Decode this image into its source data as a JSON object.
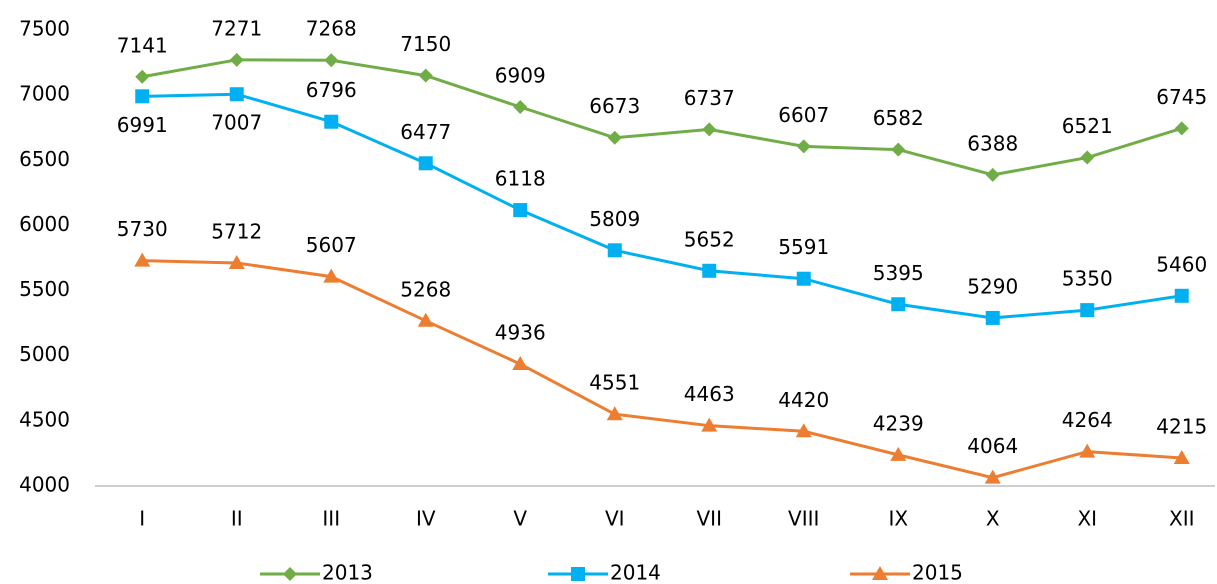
{
  "chart_data": {
    "type": "line",
    "categories": [
      "I",
      "II",
      "III",
      "IV",
      "V",
      "VI",
      "VII",
      "VIII",
      "IX",
      "X",
      "XI",
      "XII"
    ],
    "series": [
      {
        "name": "2013",
        "color": "#70ad47",
        "marker": "diamond",
        "values": [
          7141,
          7271,
          7268,
          7150,
          6909,
          6673,
          6737,
          6607,
          6582,
          6388,
          6521,
          6745
        ]
      },
      {
        "name": "2014",
        "color": "#00b0f0",
        "marker": "square",
        "values": [
          6991,
          7007,
          6796,
          6477,
          6118,
          5809,
          5652,
          5591,
          5395,
          5290,
          5350,
          5460
        ]
      },
      {
        "name": "2015",
        "color": "#ed7d31",
        "marker": "triangle",
        "values": [
          5730,
          5712,
          5607,
          5268,
          4936,
          4551,
          4463,
          4420,
          4239,
          4064,
          4264,
          4215
        ]
      }
    ],
    "ylim": [
      4000,
      7500
    ],
    "yticks": [
      4000,
      4500,
      5000,
      5500,
      6000,
      6500,
      7000,
      7500
    ],
    "grid": false,
    "legend": "bottom"
  }
}
